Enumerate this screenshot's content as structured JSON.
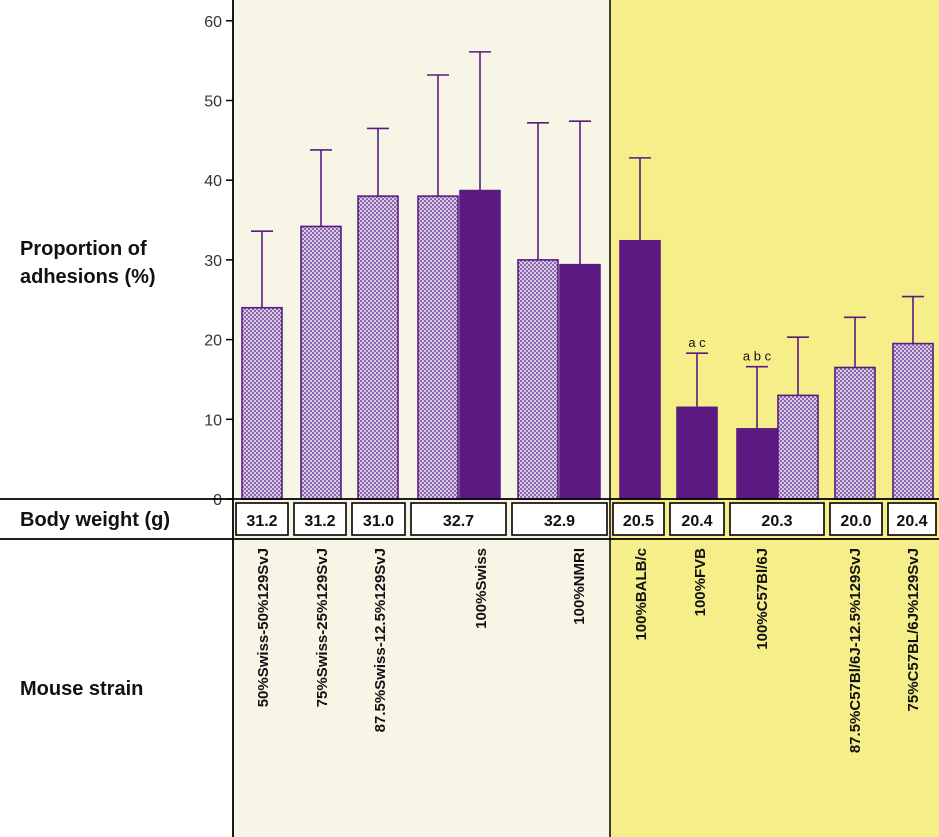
{
  "chart_data": {
    "type": "bar",
    "ylabel_line1": "Proportion of",
    "ylabel_line2": "adhesions (%)",
    "ylim": [
      0,
      60
    ],
    "yticks": [
      0,
      10,
      20,
      30,
      40,
      50,
      60
    ],
    "weight_row_label": "Body weight (g)",
    "strain_row_label": "Mouse strain",
    "panel_colors": {
      "left": "#f7f6e6",
      "right": "#f6ee88"
    },
    "colors": {
      "solid": "#5b1a82",
      "hatched": "#b89ed0",
      "outline": "#5b1a82"
    },
    "groups": [
      {
        "strain": "50%Swiss-50%129SvJ",
        "weight": "31.2",
        "bars": [
          {
            "style": "hatched",
            "value": 24.0,
            "error": 33.6
          }
        ]
      },
      {
        "strain": "75%Swiss-25%129SvJ",
        "weight": "31.2",
        "bars": [
          {
            "style": "hatched",
            "value": 34.2,
            "error": 43.8
          }
        ]
      },
      {
        "strain": "87.5%Swiss-12.5%129SvJ",
        "weight": "31.0",
        "bars": [
          {
            "style": "hatched",
            "value": 38.0,
            "error": 46.5
          }
        ]
      },
      {
        "strain": "100%Swiss",
        "weight": "32.7",
        "bars": [
          {
            "style": "hatched",
            "value": 38.0,
            "error": 53.2
          },
          {
            "style": "solid",
            "value": 38.7,
            "error": 56.1
          }
        ]
      },
      {
        "strain": "100%NMRI",
        "weight": "32.9",
        "bars": [
          {
            "style": "hatched",
            "value": 30.0,
            "error": 47.2
          },
          {
            "style": "solid",
            "value": 29.4,
            "error": 47.4
          }
        ]
      },
      {
        "strain": "100%BALB/c",
        "weight": "20.5",
        "bars": [
          {
            "style": "solid",
            "value": 32.4,
            "error": 42.8
          }
        ]
      },
      {
        "strain": "100%FVB",
        "weight": "20.4",
        "bars": [
          {
            "style": "solid",
            "value": 11.5,
            "error": 18.3,
            "annotation": "a c"
          }
        ]
      },
      {
        "strain": "100%C57Bl/6J",
        "weight": "20.3",
        "bars": [
          {
            "style": "solid",
            "value": 8.8,
            "error": 16.6,
            "annotation": "a b c"
          },
          {
            "style": "hatched",
            "value": 13.0,
            "error": 20.3
          }
        ]
      },
      {
        "strain": "87.5%C57Bl/6J-12.5%129SvJ",
        "weight": "20.0",
        "bars": [
          {
            "style": "hatched",
            "value": 16.5,
            "error": 22.8
          }
        ]
      },
      {
        "strain": "75%C57BL/6J%129SvJ",
        "weight": "20.4",
        "bars": [
          {
            "style": "hatched",
            "value": 19.5,
            "error": 25.4
          }
        ]
      }
    ]
  }
}
